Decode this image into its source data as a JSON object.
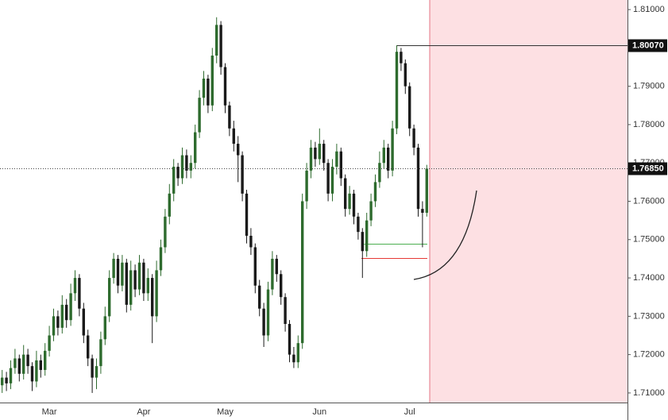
{
  "chart_data": {
    "type": "candlestick",
    "categories": [
      null,
      null,
      null,
      null,
      null,
      null,
      null,
      null,
      null,
      null,
      null,
      "Mar",
      null,
      null,
      null,
      null,
      null,
      null,
      null,
      null,
      null,
      null,
      null,
      null,
      null,
      null,
      null,
      null,
      null,
      null,
      null,
      null,
      null,
      "Apr",
      null,
      null,
      null,
      null,
      null,
      null,
      null,
      null,
      null,
      null,
      null,
      null,
      null,
      null,
      null,
      null,
      null,
      null,
      "May",
      null,
      null,
      null,
      null,
      null,
      null,
      null,
      null,
      null,
      null,
      null,
      null,
      null,
      null,
      null,
      null,
      null,
      null,
      null,
      null,
      null,
      "Jun",
      null,
      null,
      null,
      null,
      null,
      null,
      null,
      null,
      null,
      null,
      null,
      null,
      null,
      null,
      null,
      null,
      null,
      null,
      null,
      null,
      "Jul",
      null,
      null,
      null,
      null
    ],
    "open": [
      1.712,
      1.714,
      1.7125,
      1.7165,
      1.719,
      1.715,
      1.72,
      1.717,
      1.713,
      1.7185,
      1.716,
      1.721,
      1.725,
      1.73,
      1.727,
      1.733,
      1.729,
      1.736,
      1.74,
      1.732,
      1.725,
      1.719,
      1.714,
      1.717,
      1.724,
      1.73,
      1.74,
      1.745,
      1.738,
      1.744,
      1.733,
      1.742,
      1.737,
      1.744,
      1.736,
      1.74,
      1.73,
      1.742,
      1.748,
      1.756,
      1.762,
      1.769,
      1.766,
      1.772,
      1.768,
      1.77,
      1.778,
      1.787,
      1.792,
      1.785,
      1.798,
      1.806,
      1.795,
      1.785,
      1.779,
      1.775,
      1.772,
      1.762,
      1.751,
      1.748,
      1.738,
      1.732,
      1.725,
      1.737,
      1.745,
      1.741,
      1.735,
      1.728,
      1.72,
      1.718,
      1.723,
      1.76,
      1.768,
      1.774,
      1.771,
      1.775,
      1.77,
      1.762,
      1.769,
      1.773,
      1.766,
      1.758,
      1.762,
      1.756,
      1.752,
      1.747,
      1.755,
      1.76,
      1.765,
      1.77,
      1.774,
      1.768,
      1.779,
      1.799,
      1.796,
      1.79,
      1.779,
      1.774,
      1.758,
      1.757
    ],
    "high": [
      1.716,
      1.7155,
      1.7185,
      1.7215,
      1.72,
      1.7225,
      1.7215,
      1.718,
      1.721,
      1.72,
      1.723,
      1.7275,
      1.732,
      1.7315,
      1.7355,
      1.7345,
      1.7385,
      1.742,
      1.741,
      1.7335,
      1.7265,
      1.72,
      1.719,
      1.726,
      1.7325,
      1.742,
      1.7465,
      1.746,
      1.746,
      1.745,
      1.7445,
      1.7435,
      1.746,
      1.745,
      1.7425,
      1.741,
      1.7445,
      1.75,
      1.758,
      1.7645,
      1.771,
      1.77,
      1.774,
      1.7735,
      1.772,
      1.78,
      1.789,
      1.794,
      1.793,
      1.8,
      1.808,
      1.807,
      1.796,
      1.786,
      1.781,
      1.777,
      1.773,
      1.763,
      1.753,
      1.749,
      1.7395,
      1.7335,
      1.739,
      1.747,
      1.746,
      1.742,
      1.736,
      1.729,
      1.722,
      1.725,
      1.762,
      1.77,
      1.776,
      1.7755,
      1.779,
      1.776,
      1.771,
      1.771,
      1.775,
      1.774,
      1.767,
      1.764,
      1.763,
      1.757,
      1.753,
      1.757,
      1.762,
      1.767,
      1.773,
      1.776,
      1.775,
      1.781,
      1.8007,
      1.8,
      1.797,
      1.791,
      1.78,
      1.775,
      1.76,
      1.7695
    ],
    "low": [
      1.71,
      1.7105,
      1.711,
      1.715,
      1.713,
      1.7135,
      1.715,
      1.7105,
      1.7115,
      1.714,
      1.7145,
      1.7195,
      1.7235,
      1.725,
      1.7255,
      1.727,
      1.7275,
      1.734,
      1.73,
      1.723,
      1.717,
      1.71,
      1.711,
      1.715,
      1.7225,
      1.7285,
      1.7385,
      1.736,
      1.7365,
      1.731,
      1.7315,
      1.735,
      1.7355,
      1.734,
      1.734,
      1.723,
      1.7285,
      1.7405,
      1.7465,
      1.754,
      1.76,
      1.764,
      1.7645,
      1.766,
      1.766,
      1.7685,
      1.7765,
      1.785,
      1.783,
      1.7835,
      1.796,
      1.793,
      1.783,
      1.777,
      1.773,
      1.765,
      1.76,
      1.749,
      1.746,
      1.736,
      1.73,
      1.722,
      1.7235,
      1.7355,
      1.739,
      1.733,
      1.726,
      1.718,
      1.7165,
      1.7165,
      1.7215,
      1.758,
      1.766,
      1.769,
      1.7695,
      1.768,
      1.76,
      1.76,
      1.767,
      1.764,
      1.756,
      1.7565,
      1.754,
      1.75,
      1.74,
      1.7455,
      1.7535,
      1.7585,
      1.7635,
      1.7685,
      1.766,
      1.7665,
      1.7775,
      1.794,
      1.788,
      1.777,
      1.772,
      1.756,
      1.748,
      1.756
    ],
    "close": [
      1.714,
      1.7125,
      1.7165,
      1.719,
      1.715,
      1.72,
      1.717,
      1.713,
      1.7185,
      1.716,
      1.721,
      1.725,
      1.73,
      1.727,
      1.733,
      1.729,
      1.736,
      1.74,
      1.732,
      1.725,
      1.719,
      1.714,
      1.717,
      1.724,
      1.73,
      1.74,
      1.745,
      1.738,
      1.744,
      1.733,
      1.742,
      1.737,
      1.744,
      1.736,
      1.74,
      1.73,
      1.742,
      1.748,
      1.756,
      1.762,
      1.769,
      1.766,
      1.772,
      1.768,
      1.77,
      1.778,
      1.787,
      1.792,
      1.785,
      1.798,
      1.806,
      1.795,
      1.785,
      1.779,
      1.775,
      1.772,
      1.762,
      1.751,
      1.748,
      1.738,
      1.732,
      1.725,
      1.737,
      1.745,
      1.741,
      1.735,
      1.728,
      1.72,
      1.718,
      1.723,
      1.76,
      1.768,
      1.774,
      1.771,
      1.775,
      1.77,
      1.762,
      1.769,
      1.773,
      1.766,
      1.758,
      1.762,
      1.756,
      1.752,
      1.747,
      1.755,
      1.76,
      1.765,
      1.77,
      1.774,
      1.768,
      1.779,
      1.799,
      1.796,
      1.79,
      1.779,
      1.774,
      1.758,
      1.757,
      1.7685
    ],
    "up_color": "#2e6b2e",
    "down_color": "#1a1a1a",
    "ylim": [
      1.7075,
      1.8125
    ],
    "yticks": [
      {
        "value": 1.71,
        "label": "1.71000"
      },
      {
        "value": 1.72,
        "label": "1.72000"
      },
      {
        "value": 1.73,
        "label": "1.73000"
      },
      {
        "value": 1.74,
        "label": "1.74000"
      },
      {
        "value": 1.75,
        "label": "1.75000"
      },
      {
        "value": 1.76,
        "label": "1.76000"
      },
      {
        "value": 1.77,
        "label": "1.77000"
      },
      {
        "value": 1.78,
        "label": "1.78000"
      },
      {
        "value": 1.79,
        "label": "1.79000"
      },
      {
        "value": 1.8,
        "label": "1.80000"
      },
      {
        "value": 1.81,
        "label": "1.81000"
      }
    ],
    "grid": false,
    "price_labels": [
      {
        "value": 1.8007,
        "label": "1.80070"
      },
      {
        "value": 1.7685,
        "label": "1.76850"
      }
    ],
    "levels": [
      {
        "value": 1.749,
        "color": "#4caf50"
      },
      {
        "value": 1.7452,
        "color": "#e53935"
      }
    ]
  }
}
